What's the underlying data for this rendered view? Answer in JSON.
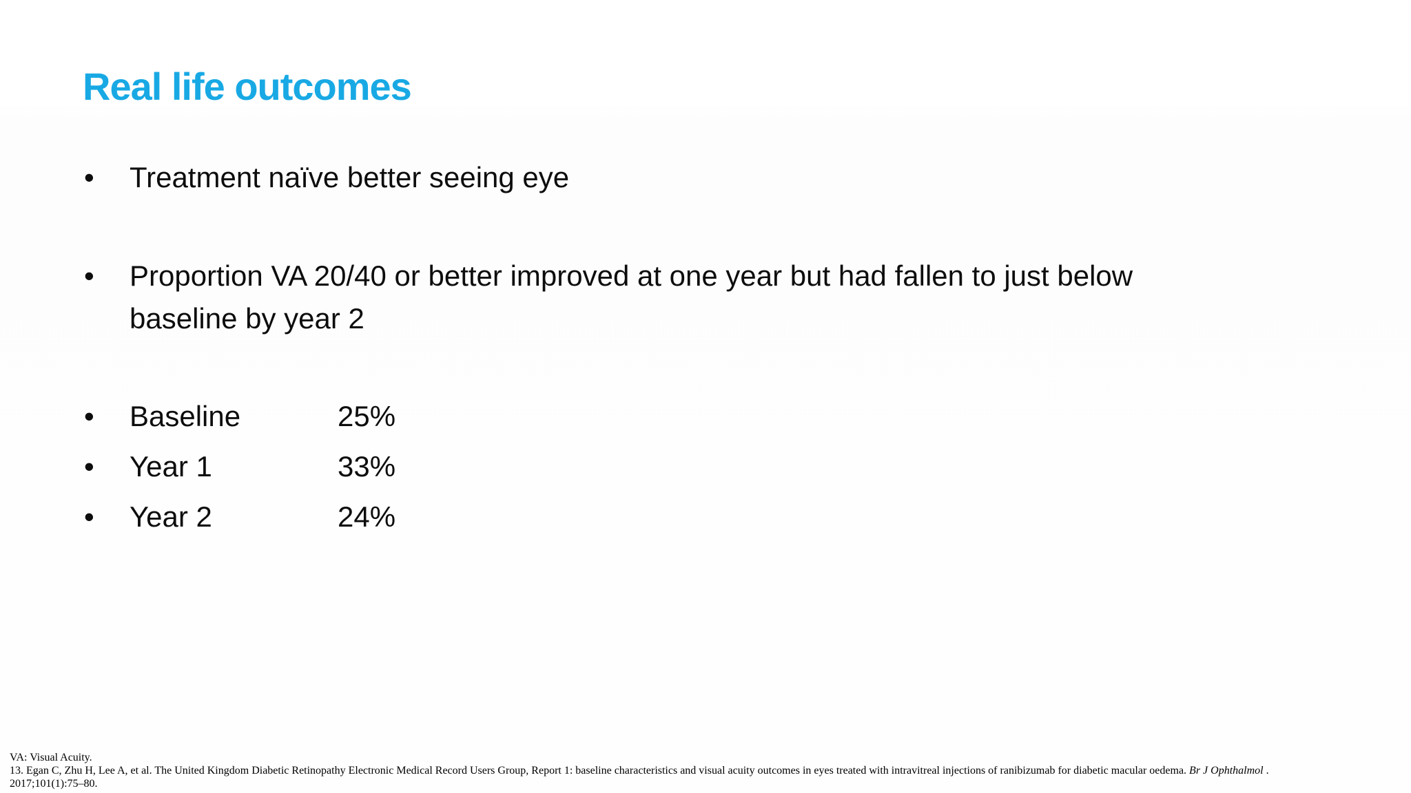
{
  "slide": {
    "title": "Real life outcomes",
    "accent_color": "#18A9E4",
    "text_color": "#0d0d0d",
    "bullet_glyph": "•",
    "bullets": [
      {
        "text": "Treatment naïve better seeing eye"
      },
      {
        "text": "Proportion VA 20/40 or better improved at one year but had fallen to just below\nbaseline by year 2"
      }
    ],
    "stats": [
      {
        "label": "Baseline",
        "value": "25%"
      },
      {
        "label": "Year 1",
        "value": "33%"
      },
      {
        "label": "Year 2",
        "value": "24%"
      }
    ],
    "footnote": {
      "abbreviation": "VA: Visual Acuity.",
      "reference_text": "13. Egan C, Zhu H, Lee A, et al. The United Kingdom Diabetic Retinopathy Electronic Medical Record Users Group, Report 1: baseline characteristics and visual acuity outcomes in eyes treated with intravitreal injections of ranibizumab for diabetic macular oedema. ",
      "reference_journal": "Br J Ophthalmol",
      "reference_tail": " .",
      "reference_continuation": "2017;101(1):75–80."
    }
  }
}
